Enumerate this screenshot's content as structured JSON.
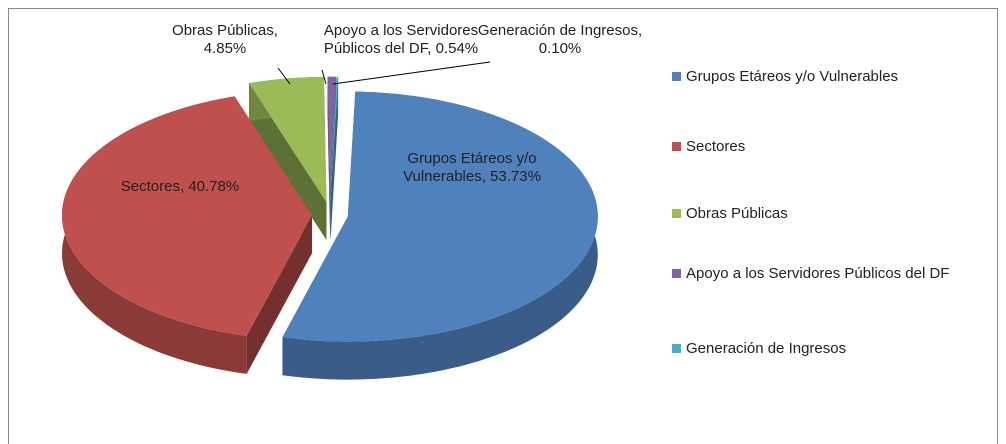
{
  "chart_data": {
    "type": "pie3d",
    "categories": [
      "Grupos Etáreos y/o Vulnerables",
      "Sectores",
      "Obras Públicas",
      "Apoyo a los Servidores Públicos del DF",
      "Generación de Ingresos"
    ],
    "values": [
      53.73,
      40.78,
      4.85,
      0.54,
      0.1
    ],
    "value_labels": [
      "Grupos Etáreos y/o Vulnerables, 53.73%",
      "Sectores, 40.78%",
      "Obras Públicas, 4.85%",
      "Apoyo a los Servidores Públicos del DF, 0.54%",
      "Generación de Ingresos, 0.10%"
    ],
    "colors": [
      "#4f81bd",
      "#c0504d",
      "#9bbb59",
      "#8064a2",
      "#4bacc6"
    ],
    "legend": "right"
  }
}
